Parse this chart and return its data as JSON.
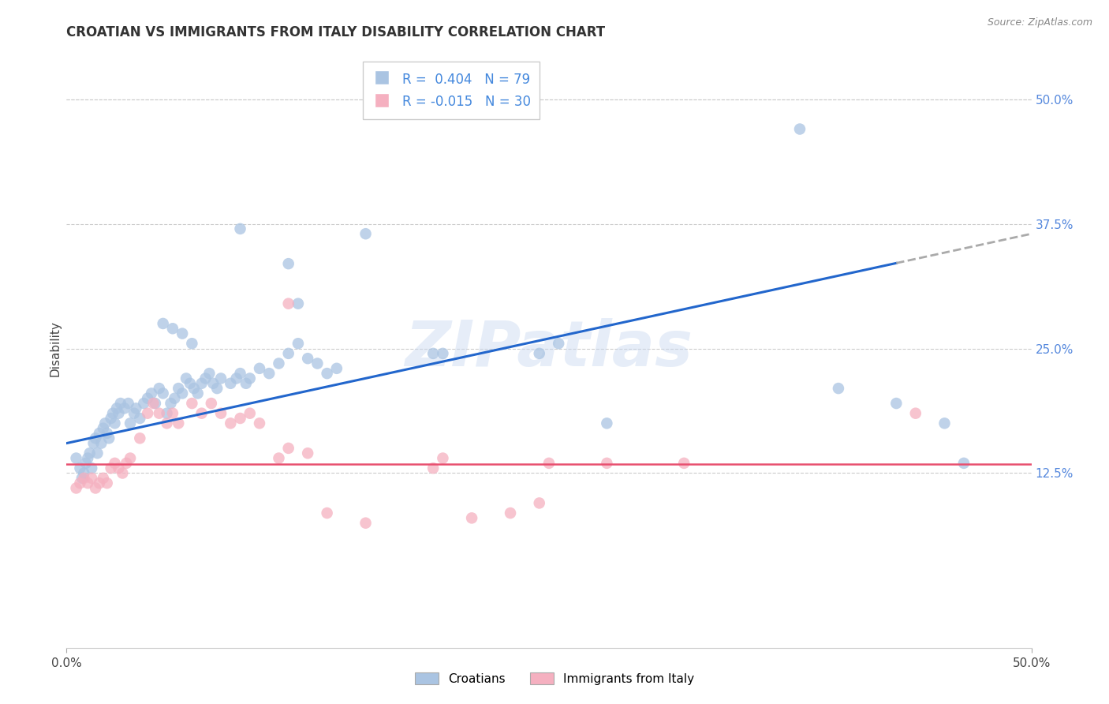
{
  "title": "CROATIAN VS IMMIGRANTS FROM ITALY DISABILITY CORRELATION CHART",
  "source": "Source: ZipAtlas.com",
  "ylabel": "Disability",
  "xlim": [
    0.0,
    0.5
  ],
  "ylim": [
    -0.05,
    0.55
  ],
  "ytick_positions_right": [
    0.5,
    0.375,
    0.25,
    0.125
  ],
  "ytick_labels_right": [
    "50.0%",
    "37.5%",
    "25.0%",
    "12.5%"
  ],
  "xtick_positions": [
    0.0,
    0.5
  ],
  "xtick_labels": [
    "0.0%",
    "50.0%"
  ],
  "croatians_color": "#aac4e2",
  "immigrants_color": "#f5b0c0",
  "trendline_croatians_color": "#2266cc",
  "trendline_immigrants_color": "#e85070",
  "trendline_ext_color": "#aaaaaa",
  "watermark_text": "ZIPatlas",
  "background_color": "#ffffff",
  "grid_color": "#cccccc",
  "trendline_blue_intercept": 0.155,
  "trendline_blue_slope": 0.42,
  "trendline_pink_intercept": 0.134,
  "trendline_pink_slope": 0.0,
  "trendline_solid_end": 0.43,
  "trendline_total_end": 0.5,
  "croatians_scatter": [
    [
      0.005,
      0.14
    ],
    [
      0.007,
      0.13
    ],
    [
      0.008,
      0.12
    ],
    [
      0.009,
      0.125
    ],
    [
      0.01,
      0.135
    ],
    [
      0.011,
      0.14
    ],
    [
      0.012,
      0.145
    ],
    [
      0.013,
      0.13
    ],
    [
      0.014,
      0.155
    ],
    [
      0.015,
      0.16
    ],
    [
      0.016,
      0.145
    ],
    [
      0.017,
      0.165
    ],
    [
      0.018,
      0.155
    ],
    [
      0.019,
      0.17
    ],
    [
      0.02,
      0.175
    ],
    [
      0.021,
      0.165
    ],
    [
      0.022,
      0.16
    ],
    [
      0.023,
      0.18
    ],
    [
      0.024,
      0.185
    ],
    [
      0.025,
      0.175
    ],
    [
      0.026,
      0.19
    ],
    [
      0.027,
      0.185
    ],
    [
      0.028,
      0.195
    ],
    [
      0.03,
      0.19
    ],
    [
      0.032,
      0.195
    ],
    [
      0.033,
      0.175
    ],
    [
      0.035,
      0.185
    ],
    [
      0.036,
      0.19
    ],
    [
      0.038,
      0.18
    ],
    [
      0.04,
      0.195
    ],
    [
      0.042,
      0.2
    ],
    [
      0.044,
      0.205
    ],
    [
      0.046,
      0.195
    ],
    [
      0.048,
      0.21
    ],
    [
      0.05,
      0.205
    ],
    [
      0.052,
      0.185
    ],
    [
      0.054,
      0.195
    ],
    [
      0.056,
      0.2
    ],
    [
      0.058,
      0.21
    ],
    [
      0.06,
      0.205
    ],
    [
      0.062,
      0.22
    ],
    [
      0.064,
      0.215
    ],
    [
      0.066,
      0.21
    ],
    [
      0.068,
      0.205
    ],
    [
      0.07,
      0.215
    ],
    [
      0.072,
      0.22
    ],
    [
      0.074,
      0.225
    ],
    [
      0.076,
      0.215
    ],
    [
      0.078,
      0.21
    ],
    [
      0.08,
      0.22
    ],
    [
      0.085,
      0.215
    ],
    [
      0.088,
      0.22
    ],
    [
      0.09,
      0.225
    ],
    [
      0.093,
      0.215
    ],
    [
      0.095,
      0.22
    ],
    [
      0.1,
      0.23
    ],
    [
      0.105,
      0.225
    ],
    [
      0.11,
      0.235
    ],
    [
      0.115,
      0.245
    ],
    [
      0.12,
      0.255
    ],
    [
      0.125,
      0.24
    ],
    [
      0.13,
      0.235
    ],
    [
      0.135,
      0.225
    ],
    [
      0.14,
      0.23
    ],
    [
      0.05,
      0.275
    ],
    [
      0.055,
      0.27
    ],
    [
      0.06,
      0.265
    ],
    [
      0.065,
      0.255
    ],
    [
      0.09,
      0.37
    ],
    [
      0.115,
      0.335
    ],
    [
      0.12,
      0.295
    ],
    [
      0.155,
      0.365
    ],
    [
      0.195,
      0.245
    ],
    [
      0.245,
      0.245
    ],
    [
      0.255,
      0.255
    ],
    [
      0.38,
      0.47
    ],
    [
      0.4,
      0.21
    ],
    [
      0.43,
      0.195
    ],
    [
      0.455,
      0.175
    ],
    [
      0.465,
      0.135
    ],
    [
      0.28,
      0.175
    ],
    [
      0.19,
      0.245
    ]
  ],
  "immigrants_scatter": [
    [
      0.005,
      0.11
    ],
    [
      0.007,
      0.115
    ],
    [
      0.009,
      0.12
    ],
    [
      0.011,
      0.115
    ],
    [
      0.013,
      0.12
    ],
    [
      0.015,
      0.11
    ],
    [
      0.017,
      0.115
    ],
    [
      0.019,
      0.12
    ],
    [
      0.021,
      0.115
    ],
    [
      0.023,
      0.13
    ],
    [
      0.025,
      0.135
    ],
    [
      0.027,
      0.13
    ],
    [
      0.029,
      0.125
    ],
    [
      0.031,
      0.135
    ],
    [
      0.033,
      0.14
    ],
    [
      0.038,
      0.16
    ],
    [
      0.042,
      0.185
    ],
    [
      0.045,
      0.195
    ],
    [
      0.048,
      0.185
    ],
    [
      0.052,
      0.175
    ],
    [
      0.055,
      0.185
    ],
    [
      0.058,
      0.175
    ],
    [
      0.065,
      0.195
    ],
    [
      0.07,
      0.185
    ],
    [
      0.075,
      0.195
    ],
    [
      0.08,
      0.185
    ],
    [
      0.085,
      0.175
    ],
    [
      0.09,
      0.18
    ],
    [
      0.095,
      0.185
    ],
    [
      0.1,
      0.175
    ],
    [
      0.11,
      0.14
    ],
    [
      0.115,
      0.15
    ],
    [
      0.125,
      0.145
    ],
    [
      0.115,
      0.295
    ],
    [
      0.19,
      0.13
    ],
    [
      0.25,
      0.135
    ],
    [
      0.28,
      0.135
    ],
    [
      0.32,
      0.135
    ],
    [
      0.195,
      0.14
    ],
    [
      0.21,
      0.08
    ],
    [
      0.23,
      0.085
    ],
    [
      0.245,
      0.095
    ],
    [
      0.44,
      0.185
    ],
    [
      0.135,
      0.085
    ],
    [
      0.155,
      0.075
    ]
  ]
}
